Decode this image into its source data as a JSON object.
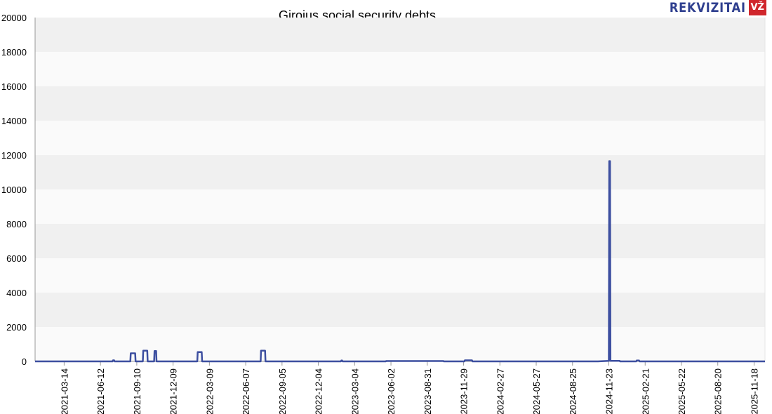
{
  "brand": {
    "word": "REKVIZITAI",
    "badge": "VŽ"
  },
  "colors": {
    "line": "#3d4fa0",
    "band_dark": "#f0f0f0",
    "band_light": "#fafafa",
    "axis": "#999999"
  },
  "chart_data": {
    "type": "line",
    "title": "Girojus social security debts",
    "xlabel": "",
    "ylabel": "",
    "ylim": [
      0,
      20000
    ],
    "xlim": [
      "2021-01-01",
      "2025-12-15"
    ],
    "y_ticks": [
      0,
      2000,
      4000,
      6000,
      8000,
      10000,
      12000,
      14000,
      16000,
      18000,
      20000
    ],
    "x_ticks": [
      "2021-03-14",
      "2021-06-12",
      "2021-09-10",
      "2021-12-09",
      "2022-03-09",
      "2022-06-07",
      "2022-09-05",
      "2022-12-04",
      "2023-03-04",
      "2023-06-02",
      "2023-08-31",
      "2023-11-29",
      "2024-02-27",
      "2024-05-27",
      "2024-08-25",
      "2024-11-23",
      "2025-02-21",
      "2025-05-22",
      "2025-08-20",
      "2025-11-18"
    ],
    "grid": true,
    "series": [
      {
        "x": [
          "2021-01-01",
          "2021-07-12",
          "2021-07-13",
          "2021-07-16",
          "2021-07-17",
          "2021-08-25",
          "2021-08-26",
          "2021-09-06",
          "2021-09-07",
          "2021-09-25",
          "2021-09-26",
          "2021-10-06",
          "2021-10-07",
          "2021-10-23",
          "2021-10-24",
          "2021-10-28",
          "2021-10-29",
          "2022-02-07",
          "2022-02-08",
          "2022-02-18",
          "2022-02-19",
          "2022-07-14",
          "2022-07-15",
          "2022-07-25",
          "2022-07-26",
          "2023-01-29",
          "2023-01-30",
          "2023-02-01",
          "2023-02-02",
          "2023-05-20",
          "2023-05-21",
          "2023-10-10",
          "2023-10-11",
          "2023-12-01",
          "2023-12-02",
          "2023-12-20",
          "2023-12-21",
          "2024-10-27",
          "2024-11-23",
          "2024-11-24",
          "2024-11-26",
          "2024-11-27",
          "2024-12-20",
          "2024-12-21",
          "2025-01-30",
          "2025-01-31",
          "2025-02-06",
          "2025-02-07",
          "2025-12-15"
        ],
        "y": [
          0,
          0,
          60,
          60,
          0,
          0,
          470,
          470,
          0,
          0,
          620,
          620,
          0,
          0,
          600,
          600,
          0,
          0,
          540,
          540,
          0,
          0,
          620,
          620,
          0,
          0,
          50,
          50,
          0,
          0,
          20,
          20,
          0,
          0,
          60,
          60,
          0,
          0,
          30,
          11650,
          11650,
          30,
          30,
          0,
          0,
          50,
          50,
          0,
          0
        ]
      }
    ]
  }
}
